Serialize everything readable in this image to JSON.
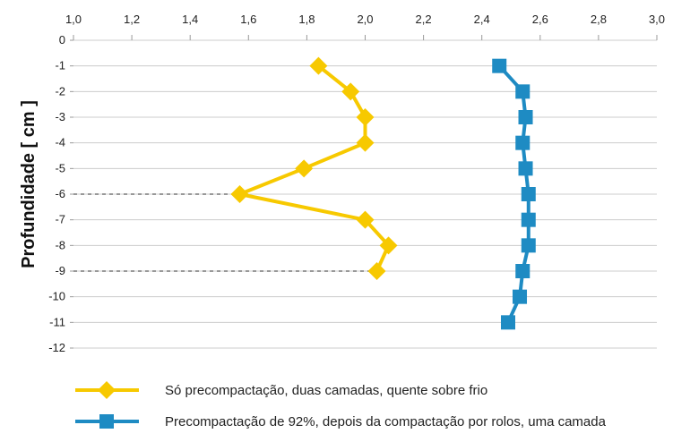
{
  "chart_data": {
    "type": "line",
    "ylabel": "Profundidade [ cm ]",
    "xlim": [
      1.0,
      3.0
    ],
    "ylim": [
      -12,
      0
    ],
    "x_ticks": [
      "1,0",
      "1,2",
      "1,4",
      "1,6",
      "1,8",
      "2,0",
      "2,2",
      "2,4",
      "2,6",
      "2,8",
      "3,0"
    ],
    "y_ticks": [
      "0",
      "-1",
      "-2",
      "-3",
      "-4",
      "-5",
      "-6",
      "-7",
      "-8",
      "-9",
      "-10",
      "-11",
      "-12"
    ],
    "x_axis_position": "top",
    "grid": "horizontal",
    "legend_position": "bottom",
    "series": [
      {
        "name": "Só precompactação, duas camadas, quente sobre frio",
        "color": "#f7c900",
        "marker": "diamond",
        "points": [
          {
            "x": 1.84,
            "y": -1
          },
          {
            "x": 1.95,
            "y": -2
          },
          {
            "x": 2.0,
            "y": -3
          },
          {
            "x": 2.0,
            "y": -4
          },
          {
            "x": 1.79,
            "y": -5
          },
          {
            "x": 1.57,
            "y": -6
          },
          {
            "x": 2.0,
            "y": -7
          },
          {
            "x": 2.08,
            "y": -8
          },
          {
            "x": 2.04,
            "y": -9
          }
        ]
      },
      {
        "name": "Precompactação de 92%, depois da compactação por rolos, uma camada",
        "color": "#1e8bc3",
        "marker": "square",
        "points": [
          {
            "x": 2.46,
            "y": -1
          },
          {
            "x": 2.54,
            "y": -2
          },
          {
            "x": 2.55,
            "y": -3
          },
          {
            "x": 2.54,
            "y": -4
          },
          {
            "x": 2.55,
            "y": -5
          },
          {
            "x": 2.56,
            "y": -6
          },
          {
            "x": 2.56,
            "y": -7
          },
          {
            "x": 2.56,
            "y": -8
          },
          {
            "x": 2.54,
            "y": -9
          },
          {
            "x": 2.53,
            "y": -10
          },
          {
            "x": 2.49,
            "y": -11
          }
        ]
      }
    ],
    "reference_lines": [
      {
        "y": -6,
        "x_to": 1.57
      },
      {
        "y": -9,
        "x_to": 2.04
      }
    ]
  }
}
